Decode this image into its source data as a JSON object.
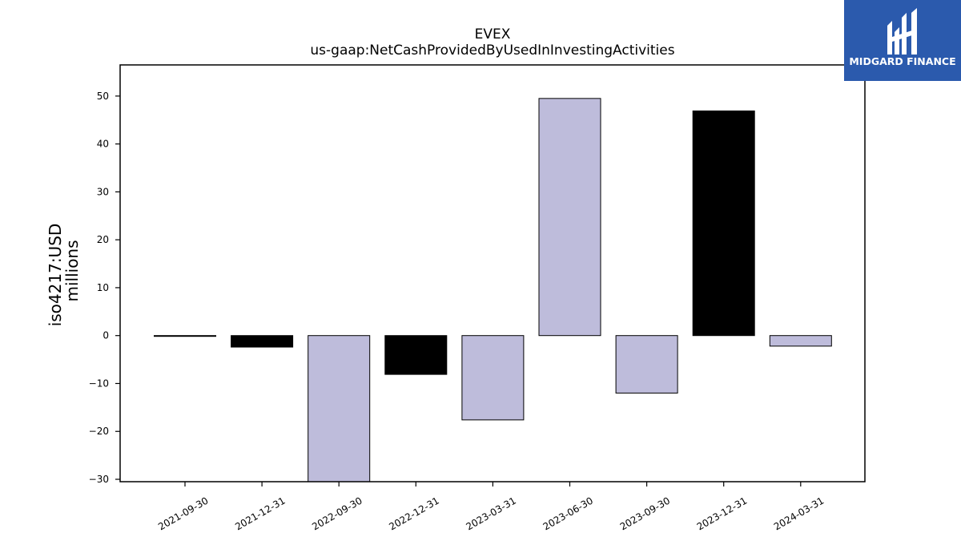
{
  "brand": {
    "name": "MIDGARD FINANCE",
    "color": "#2b5aad"
  },
  "chart_data": {
    "type": "bar",
    "title": "EVEX",
    "subtitle": "us-gaap:NetCashProvidedByUsedInInvestingActivities",
    "ylabel_line1": "iso4217:USD",
    "ylabel_line2": "millions",
    "xlabel": "",
    "categories": [
      "2021-09-30",
      "2021-12-31",
      "2022-09-30",
      "2022-12-31",
      "2023-03-31",
      "2023-06-30",
      "2023-09-30",
      "2023-12-31",
      "2024-03-31"
    ],
    "values": [
      -0.1,
      -2.4,
      -30.5,
      -8.1,
      -17.6,
      49.5,
      -12.0,
      46.9,
      -2.2
    ],
    "bar_colors": [
      "#000000",
      "#000000",
      "#bebcdb",
      "#000000",
      "#bebcdb",
      "#bebcdb",
      "#bebcdb",
      "#000000",
      "#bebcdb"
    ],
    "ylim": [
      -30.5,
      56.5
    ],
    "yticks": [
      -30,
      -20,
      -10,
      0,
      10,
      20,
      30,
      40,
      50
    ],
    "grid": false,
    "legend": "none"
  }
}
